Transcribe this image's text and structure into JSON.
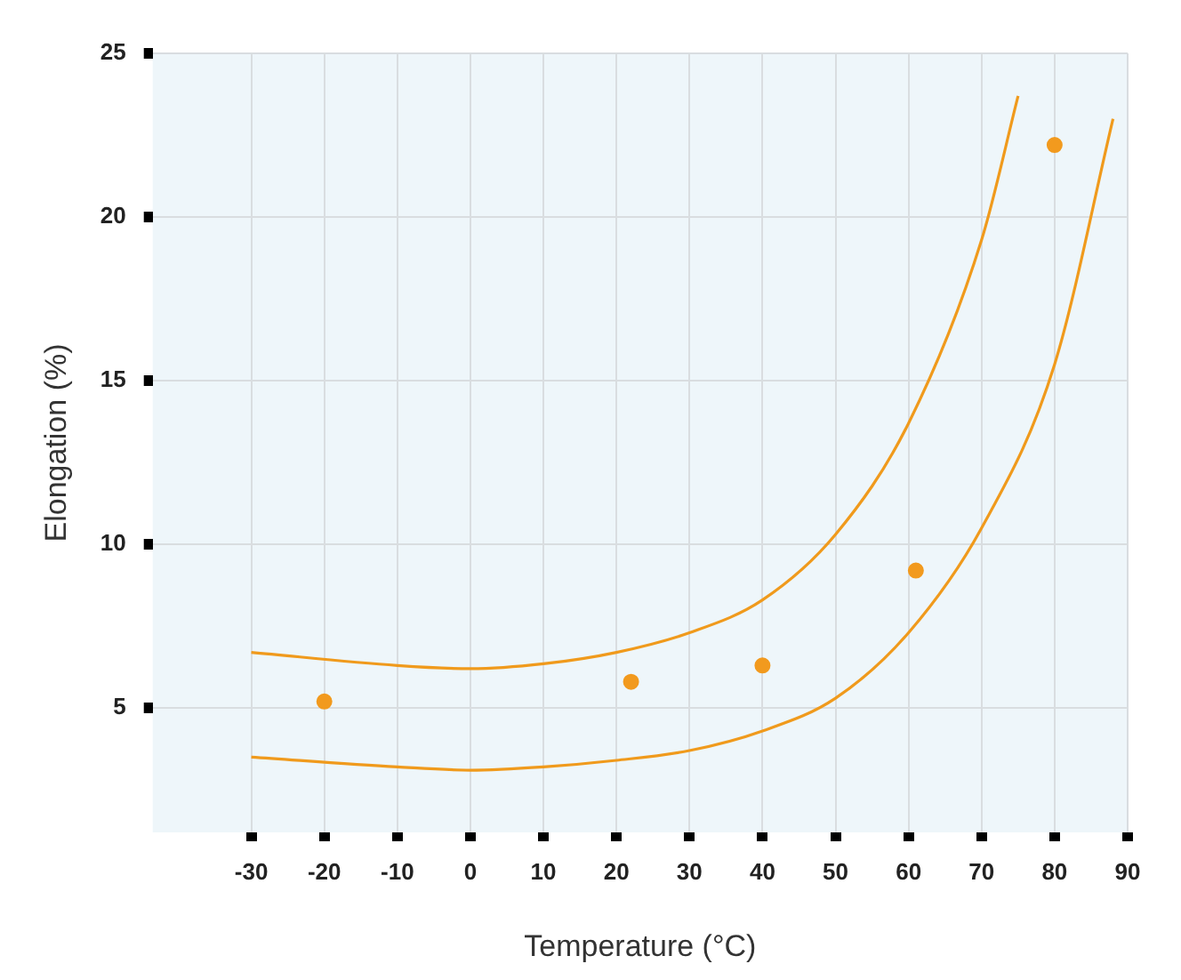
{
  "chart_data": {
    "type": "line",
    "xlabel": "Temperature (°C)",
    "ylabel": "Elongation (%)",
    "xlim": [
      -43.5,
      90
    ],
    "xticks": [
      -30,
      -20,
      -10,
      0,
      10,
      20,
      30,
      40,
      50,
      60,
      70,
      80,
      90
    ],
    "ylim": [
      1.2,
      25
    ],
    "yticks": [
      5,
      10,
      15,
      20,
      25
    ],
    "grid": true,
    "legend": false,
    "marker": "none",
    "series": [
      {
        "color": "#f09a1c",
        "x": [
          -30,
          -10,
          0,
          10,
          20,
          30,
          40,
          50,
          60,
          70,
          75
        ],
        "values": [
          6.7,
          6.3,
          6.2,
          6.35,
          6.7,
          7.3,
          8.3,
          10.3,
          13.7,
          19.3,
          23.7
        ]
      },
      {
        "color": "#f09a1c",
        "x": [
          -30,
          -10,
          0,
          10,
          20,
          30,
          40,
          50,
          60,
          70,
          80,
          88
        ],
        "values": [
          3.5,
          3.2,
          3.1,
          3.2,
          3.4,
          3.7,
          4.3,
          5.3,
          7.3,
          10.5,
          15.5,
          23
        ]
      },
      {
        "type": "scatter",
        "color": "#f29a1e",
        "marker": "circle",
        "x": [
          -20,
          22,
          40,
          61,
          80
        ],
        "values": [
          5.2,
          5.8,
          6.3,
          9.2,
          22.2
        ]
      }
    ]
  }
}
